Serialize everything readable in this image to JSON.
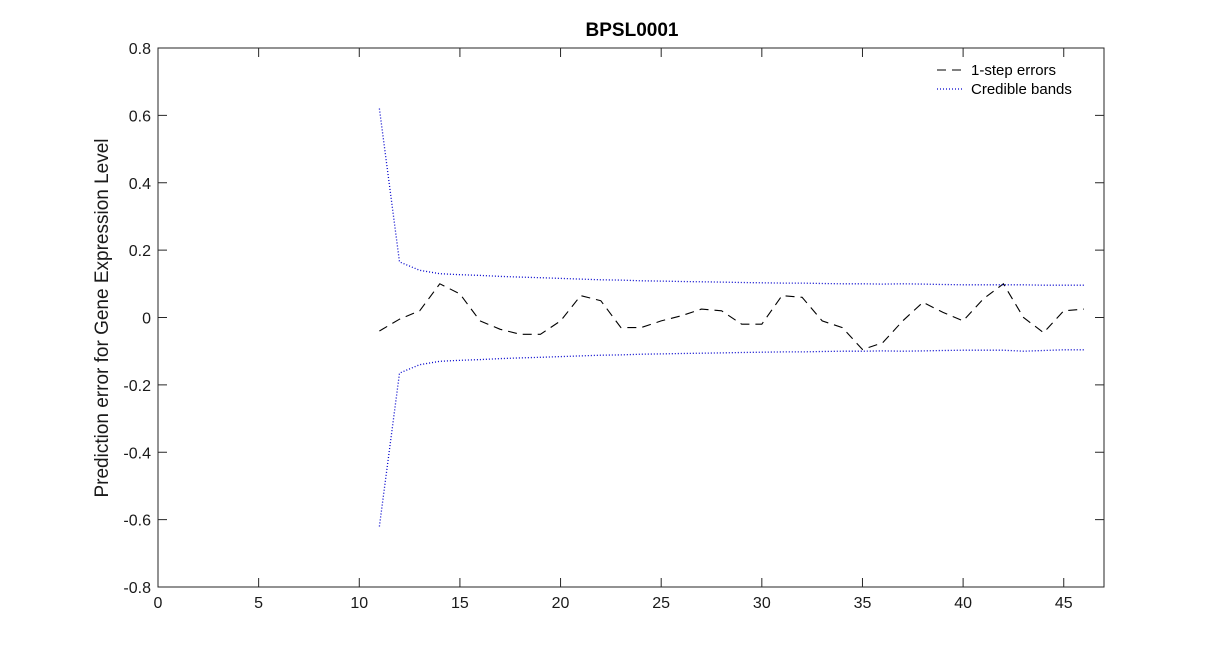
{
  "chart_data": {
    "type": "line",
    "title": "BPSL0001",
    "xlabel": "",
    "ylabel": "Prediction error for Gene Expression Level",
    "xlim": [
      0,
      47
    ],
    "ylim": [
      -0.8,
      0.8
    ],
    "xticks": [
      0,
      5,
      10,
      15,
      20,
      25,
      30,
      35,
      40,
      45
    ],
    "xtick_labels": [
      "0",
      "5",
      "10",
      "15",
      "20",
      "25",
      "30",
      "35",
      "40",
      "45"
    ],
    "yticks": [
      -0.8,
      -0.6,
      -0.4,
      -0.2,
      0,
      0.2,
      0.4,
      0.6,
      0.8
    ],
    "ytick_labels": [
      "-0.8",
      "-0.6",
      "-0.4",
      "-0.2",
      "0",
      "0.2",
      "0.4",
      "0.6",
      "0.8"
    ],
    "grid": false,
    "legend_position": "top-right",
    "x": [
      11,
      12,
      13,
      14,
      15,
      16,
      17,
      18,
      19,
      20,
      21,
      22,
      23,
      24,
      25,
      26,
      27,
      28,
      29,
      30,
      31,
      32,
      33,
      34,
      35,
      36,
      37,
      38,
      39,
      40,
      41,
      42,
      43,
      44,
      45,
      46
    ],
    "series": [
      {
        "name": "1-step errors",
        "color": "#000000",
        "dash": "dashed",
        "values": [
          -0.04,
          -0.005,
          0.02,
          0.1,
          0.07,
          -0.01,
          -0.035,
          -0.05,
          -0.05,
          -0.01,
          0.065,
          0.05,
          -0.03,
          -0.03,
          -0.01,
          0.005,
          0.025,
          0.02,
          -0.02,
          -0.02,
          0.065,
          0.06,
          -0.01,
          -0.03,
          -0.095,
          -0.075,
          -0.01,
          0.045,
          0.015,
          -0.01,
          0.055,
          0.1,
          0.0,
          -0.045,
          0.02,
          0.025
        ]
      },
      {
        "name": "Credible bands",
        "color": "#0000cc",
        "dash": "dotted",
        "values": [
          0.62,
          0.165,
          0.14,
          0.13,
          0.127,
          0.125,
          0.122,
          0.12,
          0.118,
          0.116,
          0.114,
          0.112,
          0.111,
          0.109,
          0.108,
          0.107,
          0.106,
          0.105,
          0.104,
          0.103,
          0.102,
          0.102,
          0.101,
          0.1,
          0.1,
          0.099,
          0.1,
          0.099,
          0.098,
          0.097,
          0.097,
          0.097,
          0.097,
          0.096,
          0.096,
          0.096
        ]
      },
      {
        "name": "",
        "color": "#0000cc",
        "dash": "dotted",
        "values": [
          -0.62,
          -0.165,
          -0.14,
          -0.13,
          -0.127,
          -0.125,
          -0.122,
          -0.12,
          -0.118,
          -0.116,
          -0.114,
          -0.112,
          -0.111,
          -0.109,
          -0.108,
          -0.107,
          -0.106,
          -0.105,
          -0.104,
          -0.103,
          -0.102,
          -0.102,
          -0.101,
          -0.1,
          -0.1,
          -0.099,
          -0.1,
          -0.099,
          -0.098,
          -0.097,
          -0.097,
          -0.097,
          -0.1,
          -0.098,
          -0.096,
          -0.096
        ]
      }
    ],
    "legend": [
      {
        "label": "1-step errors",
        "series_index": 0
      },
      {
        "label": "Credible bands",
        "series_index": 1
      }
    ]
  }
}
